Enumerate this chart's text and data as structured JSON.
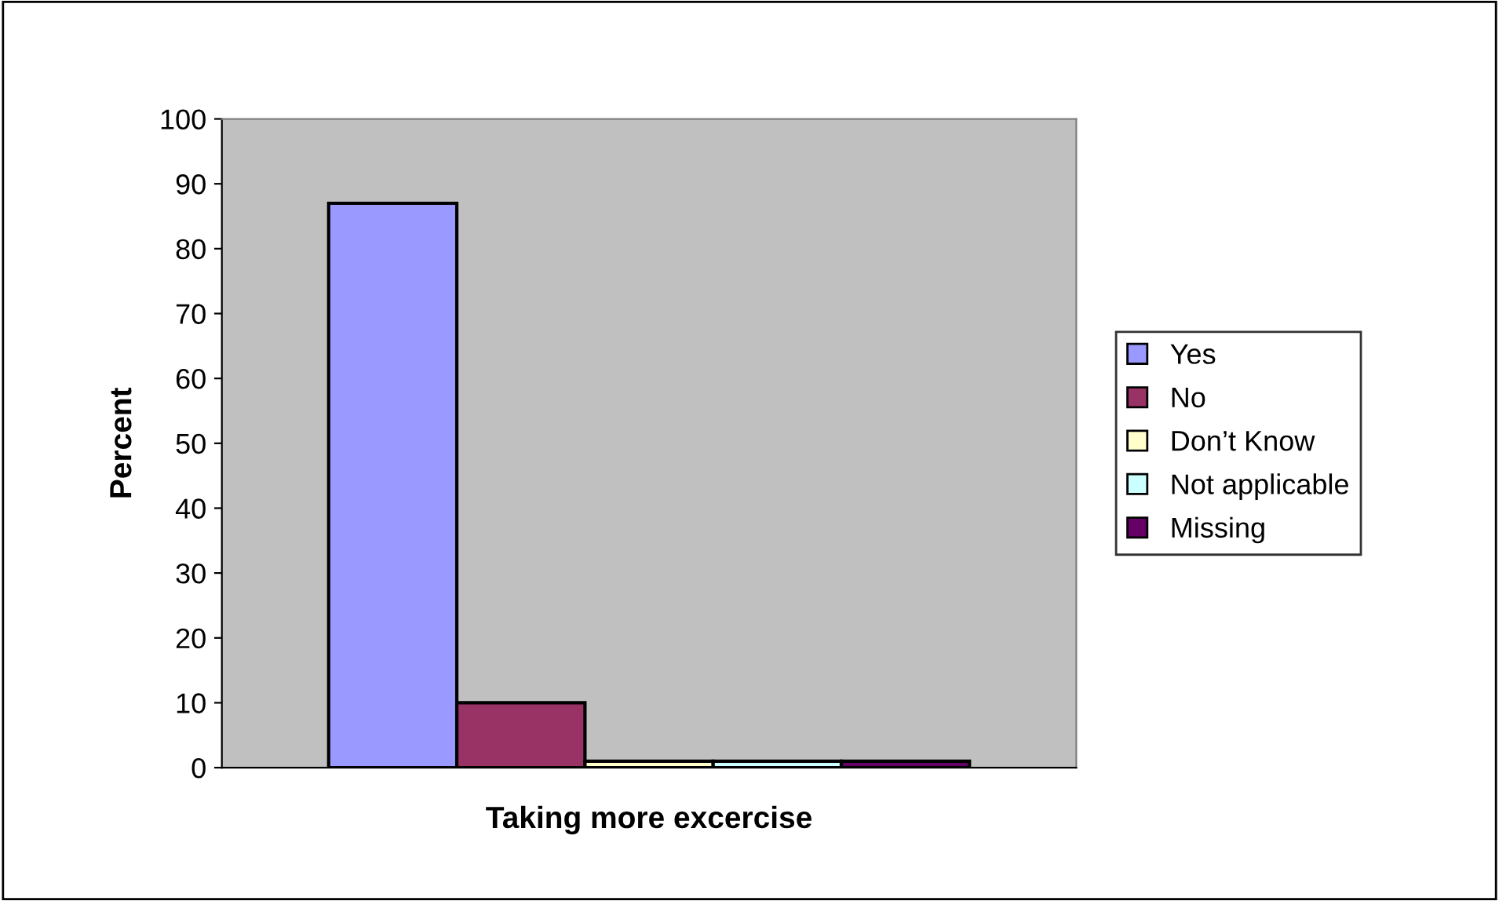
{
  "chart_data": {
    "type": "bar",
    "xlabel": "Taking more excercise",
    "ylabel": "Percent",
    "categories": [
      null
    ],
    "series": [
      {
        "name": "Yes",
        "color": "#9999ff",
        "values": [
          87
        ]
      },
      {
        "name": "No",
        "color": "#993366",
        "values": [
          10
        ]
      },
      {
        "name": "Don’t Know",
        "color": "#ffffcc",
        "values": [
          1
        ]
      },
      {
        "name": "Not applicable",
        "color": "#ccffff",
        "values": [
          1
        ]
      },
      {
        "name": "Missing",
        "color": "#660066",
        "values": [
          1
        ]
      }
    ],
    "ylim": [
      0,
      100
    ],
    "yticks": [
      0,
      10,
      20,
      30,
      40,
      50,
      60,
      70,
      80,
      90,
      100
    ],
    "grid": false,
    "legend": "right"
  }
}
